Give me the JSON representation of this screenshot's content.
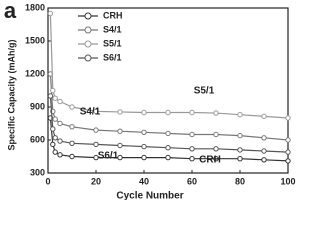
{
  "chart_data": {
    "type": "line",
    "panel_label": "a",
    "x_label": "Cycle Number",
    "y_label": "Specific Capacity (mAh/g)",
    "x": [
      1,
      2,
      3,
      5,
      10,
      20,
      30,
      40,
      50,
      60,
      70,
      80,
      90,
      100
    ],
    "series": [
      {
        "name": "CRH",
        "color": "#333333",
        "values": [
          800,
          560,
          490,
          465,
          450,
          440,
          440,
          440,
          440,
          430,
          430,
          430,
          420,
          410
        ]
      },
      {
        "name": "S4/1",
        "color": "#777777",
        "values": [
          1200,
          860,
          790,
          750,
          720,
          690,
          680,
          670,
          660,
          650,
          650,
          640,
          620,
          600
        ]
      },
      {
        "name": "S5/1",
        "color": "#999999",
        "values": [
          1750,
          1050,
          980,
          950,
          900,
          860,
          855,
          850,
          850,
          850,
          845,
          830,
          815,
          800
        ]
      },
      {
        "name": "S6/1",
        "color": "#555555",
        "values": [
          1000,
          700,
          620,
          590,
          570,
          560,
          550,
          540,
          530,
          520,
          520,
          510,
          500,
          490
        ]
      }
    ],
    "annotations": [
      "S5/1",
      "S4/1",
      "S6/1",
      "CRH"
    ],
    "xlim": [
      0,
      100
    ],
    "xticks": [
      0,
      20,
      40,
      60,
      80,
      100
    ],
    "ylim": [
      300,
      1800
    ],
    "yticks": [
      300,
      600,
      900,
      1200,
      1500,
      1800
    ],
    "legend": "upper left"
  }
}
